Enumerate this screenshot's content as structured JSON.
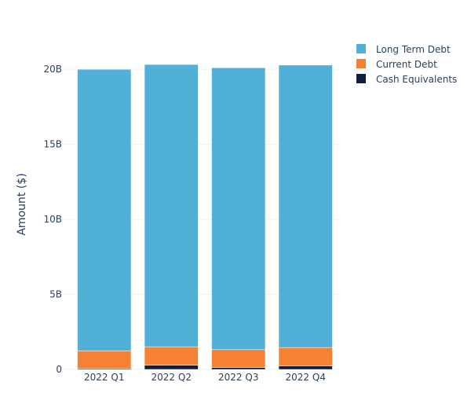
{
  "colors": {
    "background": "#ffffff",
    "gridline": "#eef0f4",
    "text": "#2a3f5f"
  },
  "chart_data": {
    "type": "bar",
    "stacked": true,
    "title": "",
    "xlabel": "",
    "ylabel": "Amount ($)",
    "ylim": [
      0,
      22000000000
    ],
    "yticks": [
      0,
      5000000000,
      10000000000,
      15000000000,
      20000000000
    ],
    "ytick_labels": [
      "0",
      "5B",
      "10B",
      "15B",
      "20B"
    ],
    "grid": true,
    "legend_position": "top-right",
    "categories": [
      "2022 Q1",
      "2022 Q2",
      "2022 Q3",
      "2022 Q4"
    ],
    "series": [
      {
        "name": "Cash Equivalents",
        "color": "#0d1f44",
        "values": [
          60000000,
          280000000,
          120000000,
          230000000
        ]
      },
      {
        "name": "Current Debt",
        "color": "#f58233",
        "values": [
          1180000000,
          1230000000,
          1200000000,
          1230000000
        ]
      },
      {
        "name": "Long Term Debt",
        "color": "#51b0d8",
        "values": [
          18760000000,
          18810000000,
          18780000000,
          18820000000
        ]
      }
    ],
    "legend_order": [
      "Long Term Debt",
      "Current Debt",
      "Cash Equivalents"
    ]
  }
}
